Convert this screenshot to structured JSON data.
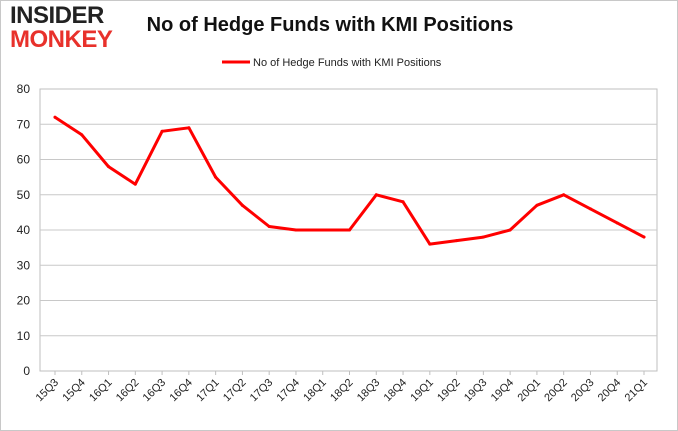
{
  "logo": {
    "line1": "INSIDER",
    "line2": "MONKEY",
    "accent": "#e8312b"
  },
  "chart_data": {
    "type": "line",
    "title": "No of Hedge Funds with KMI Positions",
    "xlabel": "",
    "ylabel": "",
    "ylim": [
      0,
      80
    ],
    "yticks": [
      0,
      10,
      20,
      30,
      40,
      50,
      60,
      70,
      80
    ],
    "grid": true,
    "legend": "top-center",
    "categories": [
      "15Q3",
      "15Q4",
      "16Q1",
      "16Q2",
      "16Q3",
      "16Q4",
      "17Q1",
      "17Q2",
      "17Q3",
      "17Q4",
      "18Q1",
      "18Q2",
      "18Q3",
      "18Q4",
      "19Q1",
      "19Q2",
      "19Q3",
      "19Q4",
      "20Q1",
      "20Q2",
      "20Q3",
      "20Q4",
      "21Q1"
    ],
    "series": [
      {
        "name": "No of Hedge Funds with KMI Positions",
        "color": "#ff0000",
        "values": [
          72,
          67,
          58,
          53,
          68,
          69,
          55,
          47,
          41,
          40,
          40,
          40,
          50,
          48,
          36,
          37,
          38,
          40,
          47,
          50,
          46,
          42,
          38
        ]
      }
    ]
  }
}
